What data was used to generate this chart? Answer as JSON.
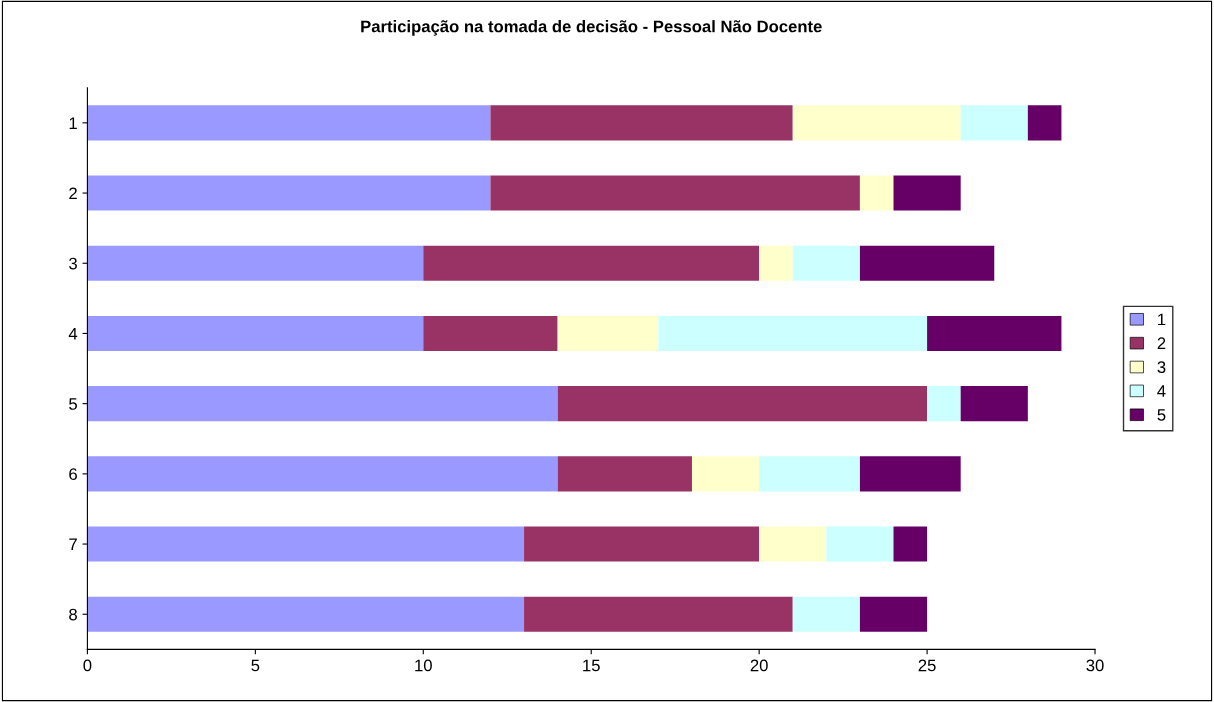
{
  "chart_data": {
    "type": "bar",
    "orientation": "horizontal",
    "stacked": true,
    "title": "Participação na tomada de decisão - Pessoal Não Docente",
    "categories": [
      "1",
      "2",
      "3",
      "4",
      "5",
      "6",
      "7",
      "8"
    ],
    "series": [
      {
        "name": "1",
        "color": "#9999ff",
        "values": [
          12,
          12,
          10,
          10,
          14,
          14,
          13,
          13
        ]
      },
      {
        "name": "2",
        "color": "#993366",
        "values": [
          9,
          11,
          10,
          4,
          11,
          4,
          7,
          8
        ]
      },
      {
        "name": "3",
        "color": "#ffffcc",
        "values": [
          5,
          1,
          1,
          3,
          0,
          2,
          2,
          0
        ]
      },
      {
        "name": "4",
        "color": "#ccffff",
        "values": [
          2,
          0,
          2,
          8,
          1,
          3,
          2,
          2
        ]
      },
      {
        "name": "5",
        "color": "#660066",
        "values": [
          1,
          2,
          4,
          4,
          2,
          3,
          1,
          2
        ]
      }
    ],
    "xlim": [
      0,
      30
    ],
    "xticks": [
      0,
      5,
      10,
      15,
      20,
      25,
      30
    ],
    "grid": false,
    "legend": "right"
  }
}
